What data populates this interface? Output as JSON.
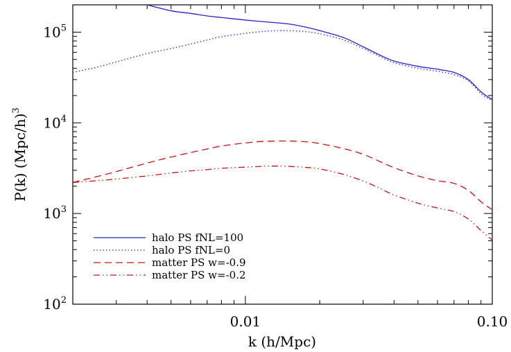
{
  "chart_data": {
    "type": "line",
    "title": "",
    "xlabel": "k (h/Mpc)",
    "ylabel": "P(k) (Mpc/h)",
    "ylabel_sup": "3",
    "x_scale": "log",
    "y_scale": "log",
    "xlim": [
      0.002,
      0.1
    ],
    "ylim": [
      100,
      200000
    ],
    "x_ticks": [
      {
        "value": 0.01,
        "label": "0.01"
      },
      {
        "value": 0.1,
        "label": "0.10"
      }
    ],
    "y_ticks": [
      {
        "value": 100,
        "base": "10",
        "exp": "2"
      },
      {
        "value": 1000,
        "base": "10",
        "exp": "3"
      },
      {
        "value": 10000,
        "base": "10",
        "exp": "4"
      },
      {
        "value": 100000,
        "base": "10",
        "exp": "5"
      }
    ],
    "grid": false,
    "legend_position": "bottom-left",
    "series": [
      {
        "name": "halo PS fNL=100",
        "color": "#2222cc",
        "style": "solid",
        "points": [
          [
            0.004,
            200000
          ],
          [
            0.005,
            172000
          ],
          [
            0.006,
            161000
          ],
          [
            0.007,
            151000
          ],
          [
            0.008,
            145000
          ],
          [
            0.01,
            136000
          ],
          [
            0.012,
            130000
          ],
          [
            0.015,
            123000
          ],
          [
            0.018,
            112000
          ],
          [
            0.02,
            104000
          ],
          [
            0.025,
            87000
          ],
          [
            0.03,
            69000
          ],
          [
            0.035,
            56000
          ],
          [
            0.04,
            48000
          ],
          [
            0.05,
            42000
          ],
          [
            0.06,
            39000
          ],
          [
            0.07,
            36000
          ],
          [
            0.08,
            30000
          ],
          [
            0.09,
            22000
          ],
          [
            0.1,
            18000
          ]
        ]
      },
      {
        "name": "halo PS fNL=0",
        "color": "#2222cc",
        "style": "dotted",
        "points": [
          [
            0.002,
            36000
          ],
          [
            0.0025,
            41000
          ],
          [
            0.003,
            47000
          ],
          [
            0.004,
            58000
          ],
          [
            0.005,
            66000
          ],
          [
            0.006,
            74000
          ],
          [
            0.007,
            82000
          ],
          [
            0.008,
            89000
          ],
          [
            0.01,
            97000
          ],
          [
            0.012,
            102000
          ],
          [
            0.014,
            104000
          ],
          [
            0.017,
            102000
          ],
          [
            0.02,
            96000
          ],
          [
            0.025,
            82000
          ],
          [
            0.03,
            66000
          ],
          [
            0.035,
            54000
          ],
          [
            0.04,
            46000
          ],
          [
            0.05,
            40000
          ],
          [
            0.06,
            37000
          ],
          [
            0.07,
            34000
          ],
          [
            0.08,
            29000
          ],
          [
            0.09,
            21000
          ],
          [
            0.1,
            17500
          ]
        ]
      },
      {
        "name": "matter PS w=-0.9",
        "color": "#cc1111",
        "style": "dashed",
        "points": [
          [
            0.002,
            2200
          ],
          [
            0.0025,
            2550
          ],
          [
            0.003,
            2900
          ],
          [
            0.004,
            3600
          ],
          [
            0.005,
            4200
          ],
          [
            0.006,
            4700
          ],
          [
            0.007,
            5150
          ],
          [
            0.008,
            5550
          ],
          [
            0.01,
            6000
          ],
          [
            0.012,
            6250
          ],
          [
            0.015,
            6300
          ],
          [
            0.018,
            6150
          ],
          [
            0.02,
            5900
          ],
          [
            0.025,
            5200
          ],
          [
            0.03,
            4500
          ],
          [
            0.035,
            3750
          ],
          [
            0.04,
            3200
          ],
          [
            0.05,
            2600
          ],
          [
            0.06,
            2300
          ],
          [
            0.07,
            2150
          ],
          [
            0.08,
            1800
          ],
          [
            0.09,
            1350
          ],
          [
            0.1,
            1100
          ]
        ]
      },
      {
        "name": "matter PS w=-0.2",
        "color": "#cc1111",
        "style": "dash-dot-dot",
        "points": [
          [
            0.002,
            2200
          ],
          [
            0.0025,
            2300
          ],
          [
            0.003,
            2400
          ],
          [
            0.004,
            2600
          ],
          [
            0.005,
            2800
          ],
          [
            0.006,
            2950
          ],
          [
            0.007,
            3050
          ],
          [
            0.008,
            3150
          ],
          [
            0.01,
            3250
          ],
          [
            0.012,
            3320
          ],
          [
            0.014,
            3330
          ],
          [
            0.017,
            3250
          ],
          [
            0.02,
            3100
          ],
          [
            0.025,
            2700
          ],
          [
            0.03,
            2280
          ],
          [
            0.035,
            1900
          ],
          [
            0.04,
            1600
          ],
          [
            0.05,
            1300
          ],
          [
            0.06,
            1150
          ],
          [
            0.07,
            1050
          ],
          [
            0.08,
            870
          ],
          [
            0.09,
            650
          ],
          [
            0.1,
            510
          ]
        ]
      }
    ]
  }
}
